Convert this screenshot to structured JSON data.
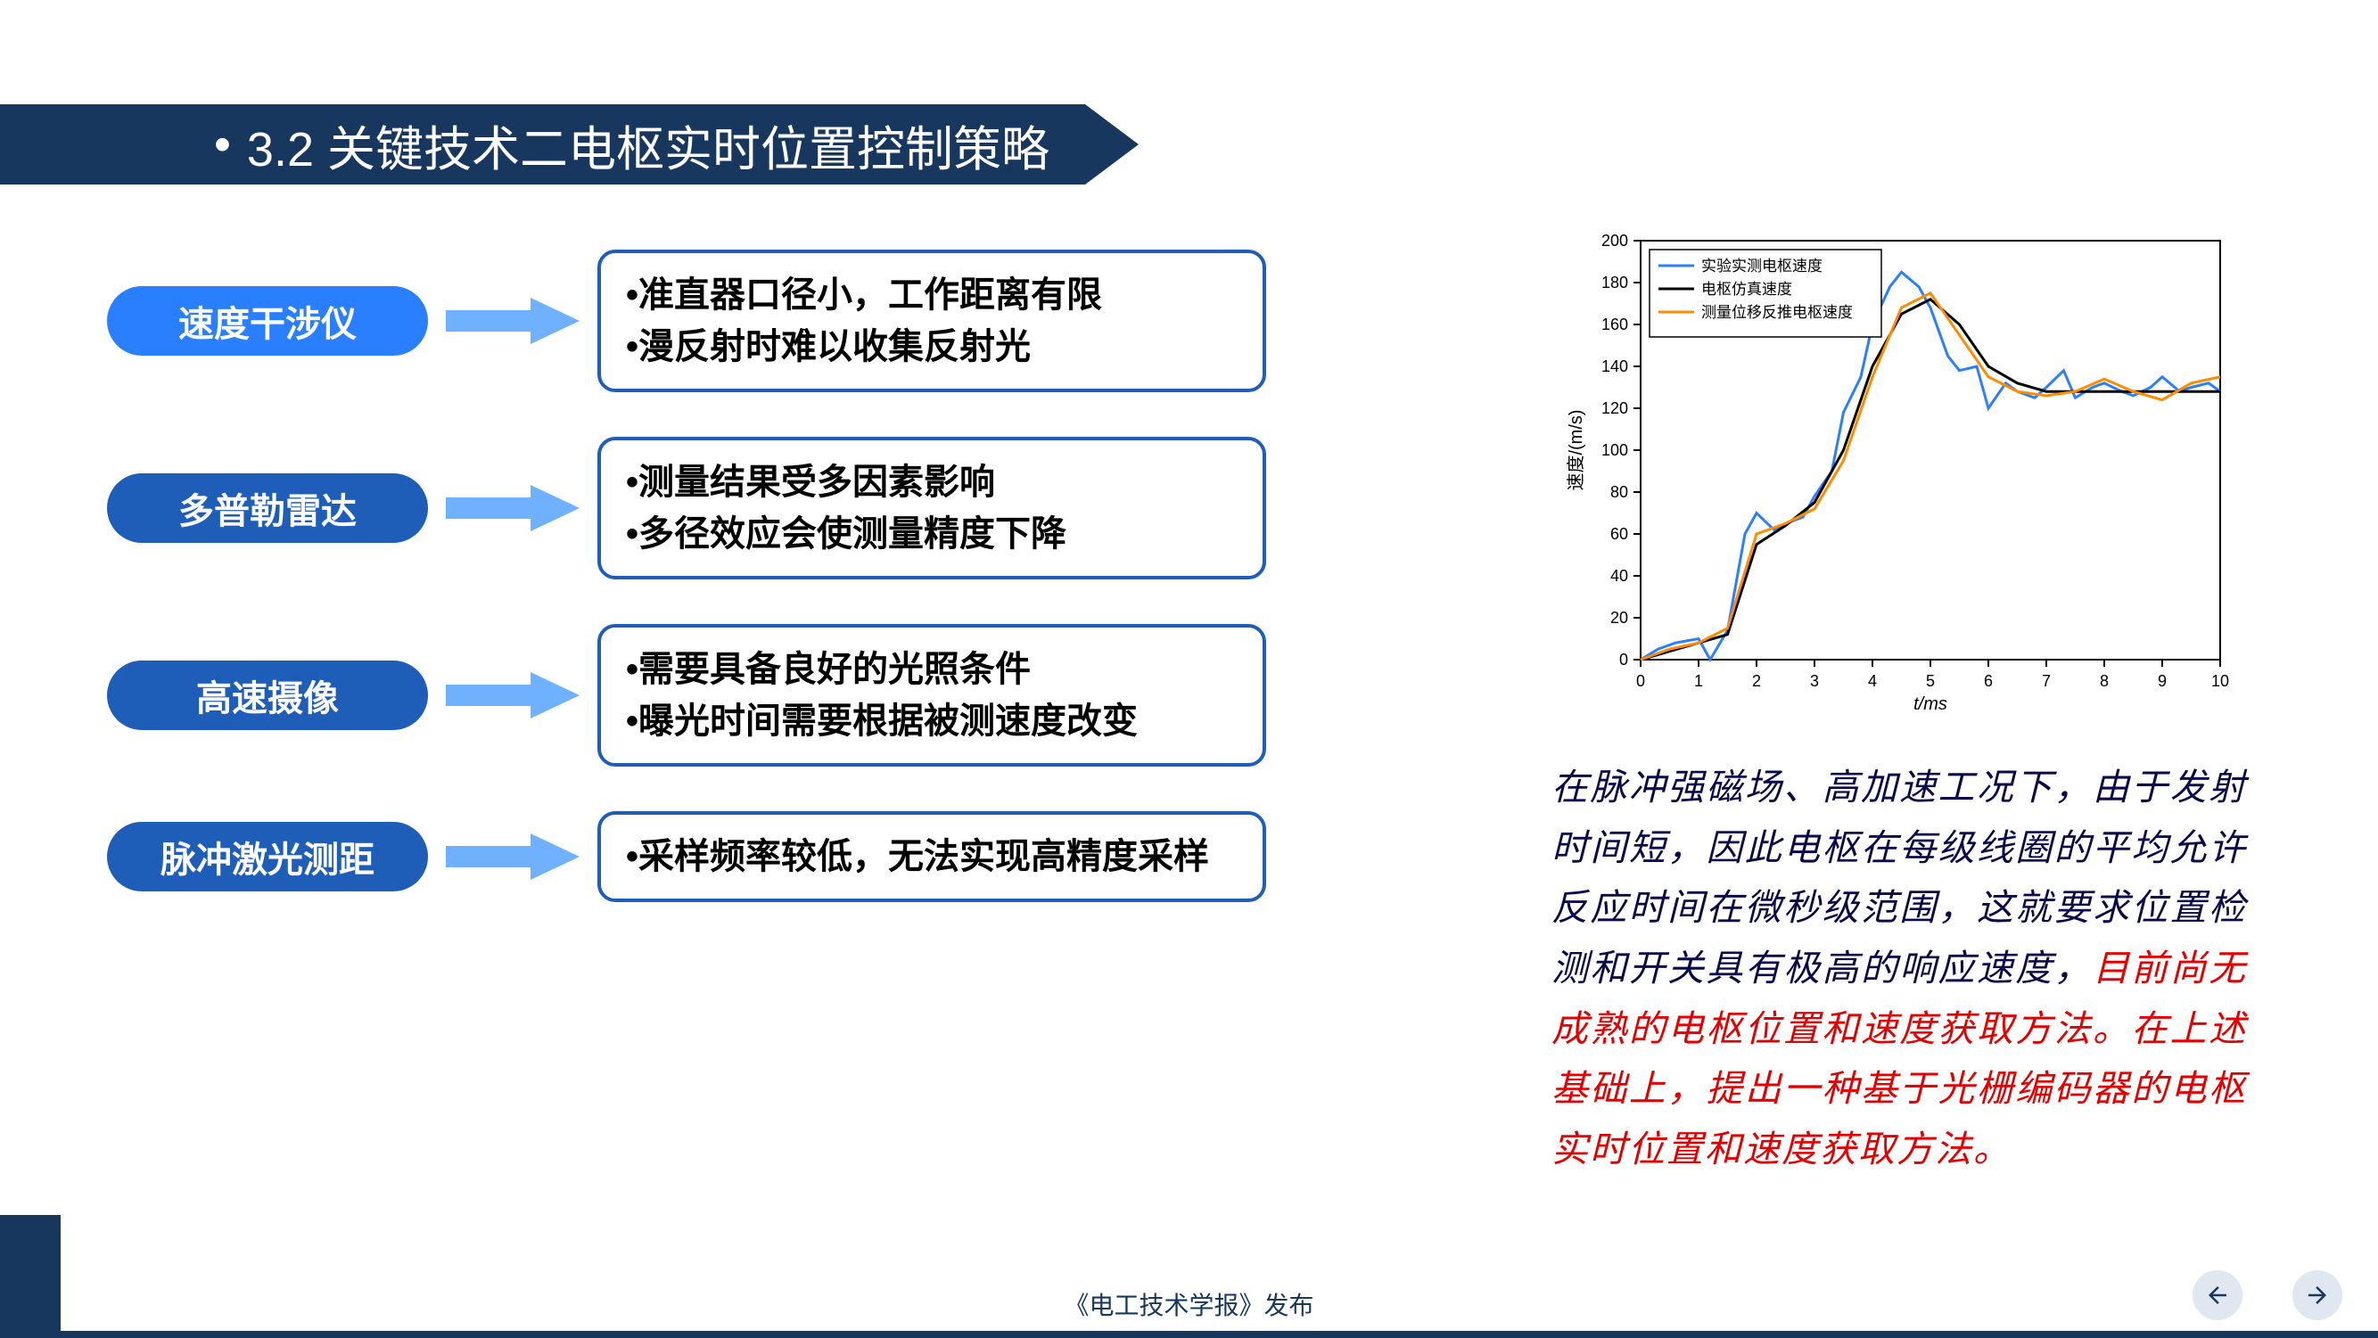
{
  "title": {
    "bullet": "•",
    "text": "3.2  关键技术二电枢实时位置控制策略"
  },
  "methods": [
    {
      "label": "速度干涉仪",
      "pill_color": "#2a7fff",
      "arrow_fill": "#6fb1ff",
      "desc": "•准直器口径小，工作距离有限\n•漫反射时难以收集反射光"
    },
    {
      "label": "多普勒雷达",
      "pill_color": "#1f5eb8",
      "arrow_fill": "#6fb1ff",
      "desc": "•测量结果受多因素影响\n•多径效应会使测量精度下降"
    },
    {
      "label": "高速摄像",
      "pill_color": "#1f5eb8",
      "arrow_fill": "#6fb1ff",
      "desc": "•需要具备良好的光照条件\n•曝光时间需要根据被测速度改变"
    },
    {
      "label": "脉冲激光测距",
      "pill_color": "#1f5eb8",
      "arrow_fill": "#6fb1ff",
      "desc": "•采样频率较低，无法实现高精度采样"
    }
  ],
  "chart": {
    "type": "line",
    "xlabel": "t/ms",
    "ylabel": "速度/(m/s)",
    "xlim": [
      0,
      10
    ],
    "ylim": [
      0,
      200
    ],
    "xtick_step": 1,
    "ytick_step": 20,
    "background_color": "#ffffff",
    "axis_color": "#000000",
    "label_fontsize": 20,
    "tick_fontsize": 18,
    "legend": {
      "items": [
        {
          "label": "实验实测电枢速度",
          "color": "#2a7fff"
        },
        {
          "label": "电枢仿真速度",
          "color": "#000000"
        },
        {
          "label": "测量位移反推电枢速度",
          "color": "#ff8c00"
        }
      ],
      "position": "top-left",
      "border_color": "#000000"
    },
    "line_width": 3,
    "series": [
      {
        "name": "实验实测电枢速度",
        "color": "#2a7fff",
        "x": [
          0,
          0.3,
          0.6,
          1,
          1.2,
          1.5,
          1.8,
          2,
          2.3,
          2.5,
          2.8,
          3,
          3.3,
          3.5,
          3.8,
          4,
          4.3,
          4.5,
          4.8,
          5,
          5.3,
          5.5,
          5.8,
          6,
          6.3,
          6.5,
          6.8,
          7,
          7.3,
          7.5,
          7.8,
          8,
          8.3,
          8.5,
          8.8,
          9,
          9.3,
          9.5,
          9.8,
          10
        ],
        "y": [
          0,
          5,
          8,
          10,
          0,
          14,
          60,
          70,
          62,
          65,
          68,
          78,
          90,
          118,
          135,
          160,
          178,
          185,
          178,
          168,
          145,
          138,
          140,
          120,
          132,
          128,
          125,
          130,
          138,
          125,
          130,
          132,
          128,
          126,
          130,
          135,
          128,
          130,
          132,
          128
        ]
      },
      {
        "name": "电枢仿真速度",
        "color": "#000000",
        "x": [
          0,
          1,
          1.5,
          2,
          2.5,
          3,
          3.5,
          4,
          4.5,
          5,
          5.5,
          6,
          6.5,
          7,
          7.5,
          8,
          8.5,
          9,
          9.5,
          10
        ],
        "y": [
          0,
          8,
          12,
          55,
          64,
          75,
          100,
          140,
          165,
          172,
          160,
          140,
          132,
          128,
          128,
          128,
          128,
          128,
          128,
          128
        ]
      },
      {
        "name": "测量位移反推电枢速度",
        "color": "#ff8c00",
        "x": [
          0,
          0.5,
          1,
          1.5,
          2,
          2.5,
          3,
          3.5,
          4,
          4.5,
          5,
          5.5,
          6,
          6.5,
          7,
          7.5,
          8,
          8.5,
          9,
          9.5,
          10
        ],
        "y": [
          0,
          5,
          8,
          15,
          60,
          65,
          72,
          95,
          135,
          168,
          175,
          155,
          135,
          128,
          126,
          128,
          134,
          128,
          124,
          132,
          135
        ]
      }
    ]
  },
  "paragraph": {
    "black": "在脉冲强磁场、高加速工况下，由于发射时间短，因此电枢在每级线圈的平均允许反应时间在微秒级范围，这就要求位置检测和开关具有极高的响应速度，",
    "red": "目前尚无成熟的电枢位置和速度获取方法。在上述基础上，提出一种基于光栅编码器的电枢实时位置和速度获取方法。"
  },
  "footer": "《电工技术学报》发布",
  "nav": {
    "prev": "←",
    "next": "→"
  }
}
